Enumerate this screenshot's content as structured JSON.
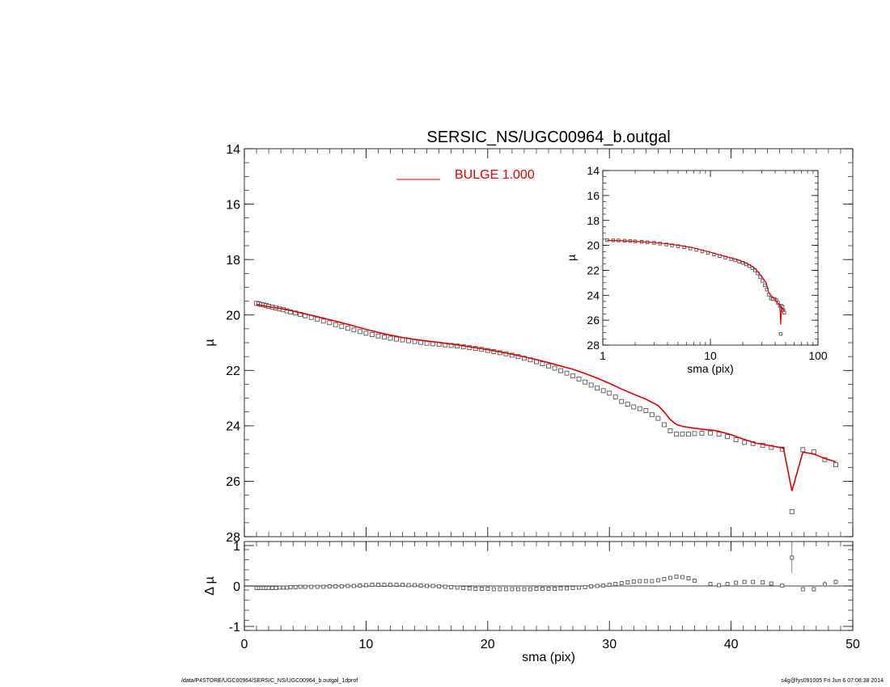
{
  "footer": {
    "left": "/data/P4STORE/UGC00964/SERSIC_NS/UGC00964_b.outgal_1dprof",
    "right": "s4g@fys091005  Fri Jun  6 07:08:38 2014"
  },
  "colors": {
    "model": "#dd0000",
    "axis": "#000000",
    "points": "#555555"
  },
  "chart_data": [
    {
      "id": "main",
      "type": "scatter",
      "title": "SERSIC_NS/UGC00964_b.outgal",
      "xlabel": "",
      "ylabel": "µ",
      "xlim": [
        0,
        50
      ],
      "ylim": [
        28,
        14
      ],
      "yticks": [
        14,
        16,
        18,
        20,
        22,
        24,
        26,
        28
      ],
      "legend": {
        "label": "BULGE  1.000",
        "position": "top-center"
      },
      "series": [
        {
          "kind": "points",
          "x": [
            1.0,
            1.2,
            1.4,
            1.6,
            1.8,
            2.0,
            2.3,
            2.6,
            2.9,
            3.2,
            3.5,
            3.8,
            4.2,
            4.6,
            5.0,
            5.5,
            6.0,
            6.5,
            7.0,
            7.5,
            8.0,
            8.5,
            9.0,
            9.5,
            10.0,
            10.5,
            11.0,
            11.5,
            12.0,
            12.5,
            13.0,
            13.5,
            14.0,
            14.5,
            15.0,
            15.5,
            16.0,
            16.5,
            17.0,
            17.5,
            18.0,
            18.5,
            19.0,
            19.5,
            20.0,
            20.5,
            21.0,
            21.5,
            22.0,
            22.5,
            23.0,
            23.5,
            24.0,
            24.5,
            25.0,
            25.5,
            26.0,
            26.5,
            27.0,
            27.5,
            28.0,
            28.5,
            29.0,
            29.5,
            30.0,
            30.5,
            31.0,
            31.5,
            32.0,
            32.5,
            33.0,
            33.5,
            34.0,
            34.5,
            35.0,
            35.5,
            36.0,
            36.5,
            37.0,
            37.6,
            38.3,
            39.0,
            39.7,
            40.4,
            41.1,
            41.8,
            42.6,
            43.3,
            44.2,
            45.0,
            45.9,
            46.8,
            47.7,
            48.6
          ],
          "y": [
            19.58,
            19.6,
            19.62,
            19.64,
            19.66,
            19.69,
            19.72,
            19.75,
            19.78,
            19.81,
            19.85,
            19.89,
            19.93,
            19.98,
            20.03,
            20.09,
            20.15,
            20.22,
            20.28,
            20.35,
            20.41,
            20.48,
            20.54,
            20.6,
            20.66,
            20.71,
            20.76,
            20.8,
            20.84,
            20.87,
            20.9,
            20.93,
            20.96,
            20.99,
            21.02,
            21.04,
            21.06,
            21.08,
            21.1,
            21.12,
            21.15,
            21.18,
            21.21,
            21.24,
            21.28,
            21.32,
            21.36,
            21.4,
            21.45,
            21.5,
            21.56,
            21.62,
            21.69,
            21.76,
            21.84,
            21.92,
            22.01,
            22.1,
            22.2,
            22.31,
            22.42,
            22.53,
            22.64,
            22.73,
            22.82,
            22.96,
            23.12,
            23.22,
            23.32,
            23.38,
            23.45,
            23.6,
            23.73,
            23.96,
            24.18,
            24.3,
            24.3,
            24.3,
            24.28,
            24.27,
            24.26,
            24.3,
            24.39,
            24.5,
            24.6,
            24.64,
            24.7,
            24.78,
            24.84,
            27.1,
            24.86,
            24.94,
            25.22,
            25.4
          ]
        },
        {
          "kind": "line",
          "name": "BULGE  1.000",
          "x": [
            1.0,
            2.0,
            3.0,
            4.0,
            5.0,
            6.0,
            7.0,
            8.0,
            9.0,
            10.0,
            11.0,
            12.0,
            13.0,
            14.0,
            15.0,
            16.0,
            17.0,
            18.0,
            19.0,
            20.0,
            21.0,
            22.0,
            23.0,
            24.0,
            25.0,
            26.0,
            27.0,
            28.0,
            29.0,
            30.0,
            31.0,
            32.0,
            33.0,
            34.0,
            34.5,
            35.0,
            35.5,
            36.0,
            37.0,
            38.0,
            38.5,
            39.0,
            40.0,
            41.0,
            42.0,
            43.0,
            44.0,
            44.3,
            45.0,
            45.9,
            46.8,
            47.7,
            48.6
          ],
          "y": [
            19.62,
            19.7,
            19.77,
            19.86,
            19.96,
            20.06,
            20.17,
            20.28,
            20.4,
            20.52,
            20.63,
            20.73,
            20.81,
            20.88,
            20.94,
            20.99,
            21.05,
            21.11,
            21.18,
            21.25,
            21.33,
            21.42,
            21.51,
            21.61,
            21.72,
            21.84,
            21.96,
            22.11,
            22.28,
            22.47,
            22.67,
            22.86,
            23.04,
            23.27,
            23.5,
            23.77,
            23.95,
            24.02,
            24.09,
            24.14,
            24.16,
            24.2,
            24.32,
            24.48,
            24.62,
            24.7,
            24.78,
            24.8,
            26.35,
            24.95,
            25.02,
            25.18,
            25.3
          ]
        }
      ]
    },
    {
      "id": "residual",
      "type": "scatter",
      "title": "",
      "xlabel": "sma (pix)",
      "ylabel": "Δ µ",
      "xlim": [
        0,
        50
      ],
      "ylim": [
        -1.1,
        1.1
      ],
      "xticks": [
        0,
        10,
        20,
        30,
        40,
        50
      ],
      "yticks": [
        -1,
        0,
        1
      ],
      "zero_line": 0,
      "series": [
        {
          "kind": "points",
          "x": [
            1.0,
            1.2,
            1.4,
            1.6,
            1.8,
            2.0,
            2.3,
            2.6,
            2.9,
            3.2,
            3.5,
            3.8,
            4.2,
            4.6,
            5.0,
            5.5,
            6.0,
            6.5,
            7.0,
            7.5,
            8.0,
            8.5,
            9.0,
            9.5,
            10.0,
            10.5,
            11.0,
            11.5,
            12.0,
            12.5,
            13.0,
            13.5,
            14.0,
            14.5,
            15.0,
            15.5,
            16.0,
            16.5,
            17.0,
            17.5,
            18.0,
            18.5,
            19.0,
            19.5,
            20.0,
            20.5,
            21.0,
            21.5,
            22.0,
            22.5,
            23.0,
            23.5,
            24.0,
            24.5,
            25.0,
            25.5,
            26.0,
            26.5,
            27.0,
            27.5,
            28.0,
            28.5,
            29.0,
            29.5,
            30.0,
            30.5,
            31.0,
            31.5,
            32.0,
            32.5,
            33.0,
            33.5,
            34.0,
            34.5,
            35.0,
            35.5,
            36.0,
            36.5,
            37.0,
            38.3,
            39.0,
            39.7,
            40.4,
            41.1,
            41.8,
            42.6,
            43.3,
            44.2,
            45.0,
            45.9,
            46.8,
            47.7,
            48.6
          ],
          "y": [
            -0.05,
            -0.05,
            -0.05,
            -0.05,
            -0.05,
            -0.05,
            -0.05,
            -0.05,
            -0.04,
            -0.04,
            -0.04,
            -0.03,
            -0.03,
            -0.02,
            -0.02,
            -0.02,
            -0.02,
            -0.02,
            -0.01,
            -0.01,
            -0.01,
            0.0,
            0.0,
            0.01,
            0.02,
            0.03,
            0.03,
            0.03,
            0.03,
            0.03,
            0.03,
            0.02,
            0.02,
            0.01,
            0.0,
            0.0,
            -0.01,
            -0.02,
            -0.03,
            -0.04,
            -0.05,
            -0.06,
            -0.07,
            -0.07,
            -0.07,
            -0.08,
            -0.08,
            -0.08,
            -0.08,
            -0.08,
            -0.08,
            -0.08,
            -0.07,
            -0.07,
            -0.07,
            -0.07,
            -0.06,
            -0.06,
            -0.05,
            -0.04,
            -0.03,
            -0.01,
            0.0,
            0.01,
            0.03,
            0.05,
            0.07,
            0.09,
            0.11,
            0.12,
            0.12,
            0.12,
            0.14,
            0.17,
            0.2,
            0.23,
            0.22,
            0.19,
            0.13,
            0.05,
            0.02,
            0.05,
            0.08,
            0.1,
            0.1,
            0.09,
            0.06,
            0.01,
            0.7,
            -0.08,
            -0.08,
            0.04,
            0.1
          ],
          "err": [
            0,
            0,
            0,
            0,
            0,
            0,
            0,
            0,
            0,
            0,
            0,
            0,
            0,
            0,
            0,
            0,
            0,
            0,
            0,
            0,
            0,
            0,
            0,
            0,
            0,
            0,
            0,
            0,
            0,
            0,
            0,
            0,
            0,
            0,
            0,
            0,
            0,
            0,
            0,
            0,
            0,
            0,
            0,
            0,
            0,
            0,
            0,
            0,
            0,
            0,
            0,
            0,
            0,
            0,
            0,
            0,
            0,
            0,
            0,
            0,
            0,
            0,
            0,
            0,
            0,
            0,
            0,
            0,
            0,
            0,
            0,
            0,
            0,
            0,
            0,
            0,
            0,
            0,
            0,
            0,
            0,
            0,
            0,
            0,
            0,
            0,
            0,
            0,
            0.38,
            0.05,
            0.06,
            0.08,
            0.06
          ]
        }
      ]
    },
    {
      "id": "inset",
      "type": "scatter",
      "title": "",
      "xlabel": "sma (pix)",
      "ylabel": "µ",
      "xscale": "log",
      "xlim": [
        1,
        100
      ],
      "ylim": [
        28,
        14
      ],
      "xticks": [
        1,
        10,
        100
      ],
      "yticks": [
        14,
        16,
        18,
        20,
        22,
        24,
        26,
        28
      ],
      "series": [
        {
          "kind": "points",
          "x": [
            1.1,
            1.25,
            1.4,
            1.6,
            1.8,
            2.0,
            2.3,
            2.6,
            3.0,
            3.4,
            3.9,
            4.4,
            5.0,
            5.7,
            6.5,
            7.4,
            8.4,
            9.5,
            10.8,
            12.2,
            13.8,
            15.6,
            17.0,
            18.5,
            20.0,
            21.5,
            23.0,
            24.5,
            26.0,
            27.5,
            29.0,
            30.5,
            32.0,
            33.5,
            35.0,
            36.5,
            38.0,
            39.5,
            41.0,
            42.5,
            44.2,
            45.0,
            45.9,
            46.8,
            47.7,
            48.6
          ],
          "y": [
            19.58,
            19.6,
            19.61,
            19.63,
            19.65,
            19.68,
            19.72,
            19.75,
            19.8,
            19.86,
            19.93,
            20.0,
            20.07,
            20.15,
            20.25,
            20.36,
            20.48,
            20.6,
            20.73,
            20.86,
            20.98,
            21.1,
            21.2,
            21.3,
            21.4,
            21.52,
            21.66,
            21.82,
            22.0,
            22.25,
            22.55,
            22.85,
            23.2,
            23.55,
            23.95,
            24.25,
            24.3,
            24.3,
            24.4,
            24.6,
            24.84,
            27.1,
            24.86,
            24.94,
            25.22,
            25.4
          ]
        },
        {
          "kind": "line",
          "x": [
            1.1,
            1.5,
            2.0,
            3.0,
            4.0,
            5.0,
            7.0,
            10.0,
            14.0,
            18.0,
            22.0,
            26.0,
            30.0,
            33.0,
            35.0,
            38.0,
            40.0,
            42.0,
            44.0,
            44.6,
            45.0,
            45.9,
            46.8,
            47.7,
            48.6
          ],
          "y": [
            19.6,
            19.63,
            19.68,
            19.78,
            19.88,
            19.99,
            20.2,
            20.55,
            20.9,
            21.15,
            21.45,
            21.85,
            22.5,
            23.0,
            23.85,
            24.15,
            24.3,
            24.6,
            24.78,
            25.5,
            26.35,
            24.95,
            25.02,
            25.18,
            25.3
          ]
        }
      ]
    }
  ]
}
